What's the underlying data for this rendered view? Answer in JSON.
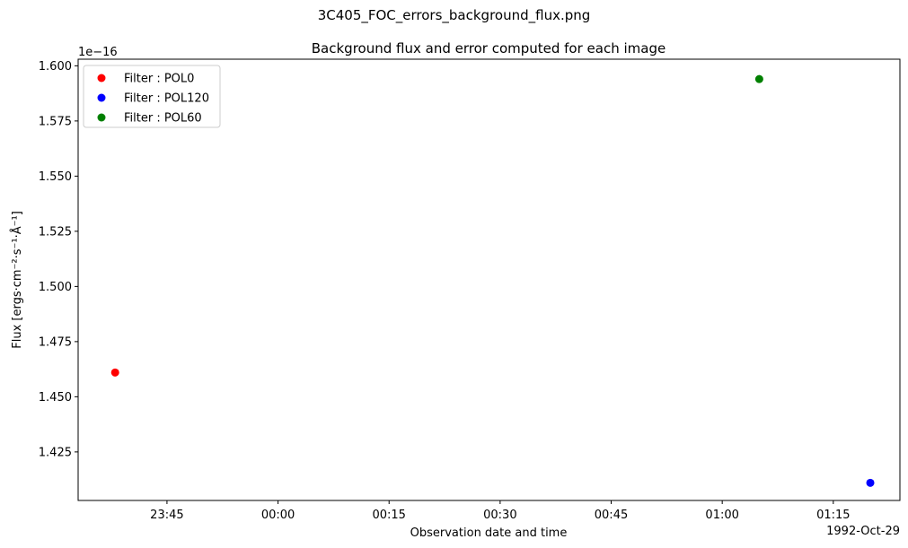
{
  "figure": {
    "suptitle": "3C405_FOC_errors_background_flux.png"
  },
  "chart_data": {
    "type": "scatter",
    "title": "Background flux and error computed for each image",
    "xlabel": "Observation date and time",
    "ylabel": "Flux [ergs·cm⁻²·s⁻¹·Å⁻¹]",
    "y_offset_label": "1e−16",
    "x_date_label": "1992-Oct-29",
    "x_axis": {
      "range": [
        "1992-10-28 23:33",
        "1992-10-29 01:24"
      ],
      "ticks": [
        {
          "time": "1992-10-28 23:45",
          "label": "23:45"
        },
        {
          "time": "1992-10-29 00:00",
          "label": "00:00"
        },
        {
          "time": "1992-10-29 00:15",
          "label": "00:15"
        },
        {
          "time": "1992-10-29 00:30",
          "label": "00:30"
        },
        {
          "time": "1992-10-29 00:45",
          "label": "00:45"
        },
        {
          "time": "1992-10-29 01:00",
          "label": "01:00"
        },
        {
          "time": "1992-10-29 01:15",
          "label": "01:15"
        }
      ]
    },
    "y_axis": {
      "range": [
        1.403,
        1.603
      ],
      "ticks": [
        1.425,
        1.45,
        1.475,
        1.5,
        1.525,
        1.55,
        1.575,
        1.6
      ],
      "tick_labels": [
        "1.425",
        "1.450",
        "1.475",
        "1.500",
        "1.525",
        "1.550",
        "1.575",
        "1.600"
      ]
    },
    "grid": false,
    "legend_position": "top-left",
    "series": [
      {
        "name": "Filter : POL0",
        "color": "#ff0000",
        "points": [
          {
            "time": "1992-10-28 23:38",
            "y": 1.461
          }
        ]
      },
      {
        "name": "Filter : POL120",
        "color": "#0000ff",
        "points": [
          {
            "time": "1992-10-29 01:20",
            "y": 1.411
          }
        ]
      },
      {
        "name": "Filter : POL60",
        "color": "#008000",
        "points": [
          {
            "time": "1992-10-29 01:05",
            "y": 1.594
          }
        ]
      }
    ]
  }
}
